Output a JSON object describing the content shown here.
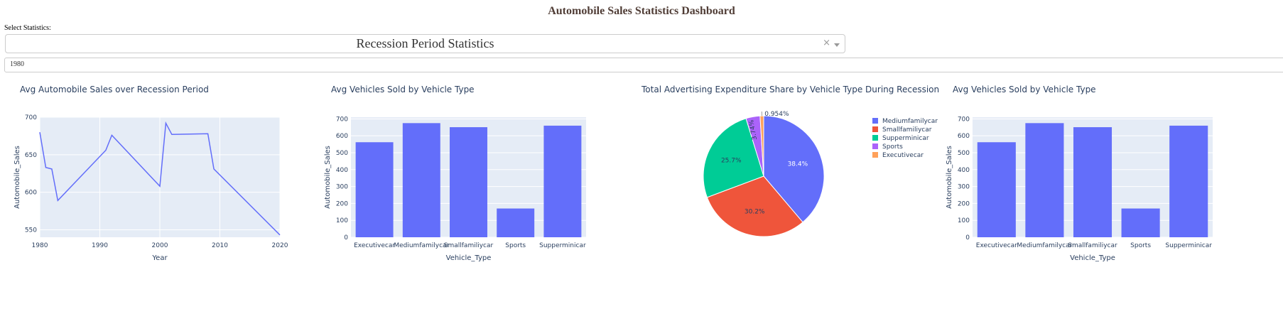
{
  "header": {
    "title": "Automobile Sales Statistics Dashboard",
    "select_label": "Select Statistics:"
  },
  "dropdown": {
    "selected": "Recession Period Statistics",
    "clear_icon": "×"
  },
  "year_input": {
    "value": "1980"
  },
  "colors": {
    "plot_bg": "#E5ECF6",
    "bar": "#636EFA",
    "line": "#636EFA",
    "pie": [
      "#636EFA",
      "#EF553B",
      "#00CC96",
      "#AB63FA",
      "#FFA15A"
    ]
  },
  "chart_data": [
    {
      "type": "line",
      "title": "Avg Automobile Sales over Recession Period",
      "xlabel": "Year",
      "ylabel": "Automobile_Sales",
      "xlim": [
        1980,
        2020
      ],
      "ylim": [
        540,
        700
      ],
      "xticks": [
        1980,
        1990,
        2000,
        2010,
        2020
      ],
      "yticks": [
        550,
        600,
        650,
        700
      ],
      "x": [
        1980,
        1981,
        1982,
        1983,
        1991,
        1992,
        2000,
        2001,
        2002,
        2008,
        2009,
        2020
      ],
      "y": [
        680,
        633,
        631,
        589,
        656,
        676,
        608,
        692,
        677,
        678,
        631,
        543
      ]
    },
    {
      "type": "bar",
      "title": "Avg Vehicles Sold by Vehicle Type",
      "xlabel": "Vehicle_Type",
      "ylabel": "Automobile_Sales",
      "ylim": [
        0,
        710
      ],
      "yticks": [
        0,
        100,
        200,
        300,
        400,
        500,
        600,
        700
      ],
      "categories": [
        "Executivecar",
        "Mediumfamilycar",
        "Smallfamiliycar",
        "Sports",
        "Supperminicar"
      ],
      "values": [
        562,
        675,
        651,
        170,
        660
      ]
    },
    {
      "type": "pie",
      "title": "Total Advertising Expenditure Share by Vehicle Type During Recession",
      "labels": [
        "Mediumfamilycar",
        "Smallfamiliycar",
        "Supperminicar",
        "Sports",
        "Executivecar"
      ],
      "values": [
        38.4,
        30.2,
        25.7,
        3.74,
        0.954
      ],
      "text_labels": [
        "38.4%",
        "30.2%",
        "25.7%",
        "3.74%",
        "0.954%"
      ],
      "legend_position": "right"
    },
    {
      "type": "bar",
      "title": "Avg Vehicles Sold by Vehicle Type",
      "xlabel": "Vehicle_Type",
      "ylabel": "Automobile_Sales",
      "ylim": [
        0,
        710
      ],
      "yticks": [
        0,
        100,
        200,
        300,
        400,
        500,
        600,
        700
      ],
      "categories": [
        "Executivecar",
        "Mediumfamilycar",
        "Smallfamiliycar",
        "Sports",
        "Supperminicar"
      ],
      "values": [
        562,
        675,
        651,
        170,
        660
      ]
    }
  ]
}
